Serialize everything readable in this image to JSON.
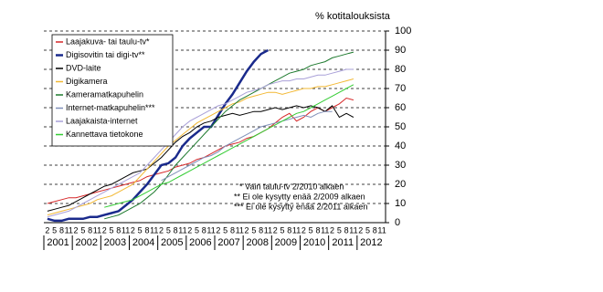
{
  "chart_data": {
    "type": "line",
    "y_axis_label": "% kotitalouksista",
    "categories": [
      "2",
      "5",
      "8",
      "11",
      "2",
      "5",
      "8",
      "11",
      "2",
      "5",
      "8",
      "11",
      "2",
      "5",
      "8",
      "11",
      "2",
      "5",
      "8",
      "11",
      "2",
      "5",
      "8",
      "11",
      "2",
      "5",
      "8",
      "11",
      "2",
      "5",
      "8",
      "11",
      "2",
      "5",
      "8",
      "11",
      "2",
      "5",
      "8",
      "11",
      "2",
      "5",
      "8",
      "11",
      "2",
      "5",
      "8",
      "11"
    ],
    "years": [
      "2001",
      "2002",
      "2003",
      "2004",
      "2005",
      "2006",
      "2007",
      "2008",
      "2009",
      "2010",
      "2011",
      "2012"
    ],
    "ylim": [
      0,
      100
    ],
    "yticks": [
      0,
      10,
      20,
      30,
      40,
      50,
      60,
      70,
      80,
      90,
      100
    ],
    "grid": true,
    "series": [
      {
        "name": "Laajakuva- tai taulu-tv*",
        "color": "#d62728",
        "values": [
          10,
          11,
          12,
          13,
          13,
          14,
          15,
          16,
          17,
          18,
          19,
          20,
          21,
          22,
          24,
          25,
          26,
          27,
          29,
          30,
          31,
          33,
          34,
          36,
          38,
          40,
          41,
          42,
          44,
          45,
          47,
          49,
          52,
          55,
          57,
          53,
          55,
          58,
          60,
          58,
          60,
          62,
          65,
          64,
          null,
          null,
          null,
          null
        ]
      },
      {
        "name": "Digisovitin tai digi-tv**",
        "color": "#1a2a8c",
        "values": [
          2,
          1,
          1,
          2,
          2,
          2,
          3,
          3,
          4,
          5,
          6,
          9,
          12,
          16,
          20,
          25,
          30,
          31,
          34,
          40,
          44,
          47,
          50,
          50,
          56,
          62,
          67,
          73,
          79,
          84,
          88,
          90,
          null,
          null,
          null,
          null,
          null,
          null,
          null,
          null,
          null,
          null,
          null,
          null,
          null,
          null,
          null,
          null
        ]
      },
      {
        "name": "DVD-laite",
        "color": "#000000",
        "values": [
          6,
          7,
          8,
          9,
          11,
          13,
          15,
          17,
          19,
          20,
          22,
          24,
          26,
          27,
          28,
          31,
          34,
          38,
          42,
          45,
          47,
          50,
          52,
          53,
          55,
          56,
          57,
          56,
          57,
          58,
          58,
          59,
          60,
          59,
          60,
          61,
          60,
          61,
          60,
          58,
          61,
          55,
          57,
          55,
          null,
          null,
          null,
          null
        ]
      },
      {
        "name": "Digikamera",
        "color": "#f2b833",
        "values": [
          4,
          5,
          6,
          7,
          8,
          9,
          10,
          12,
          13,
          14,
          16,
          18,
          20,
          24,
          28,
          32,
          36,
          40,
          43,
          46,
          49,
          52,
          54,
          56,
          58,
          60,
          62,
          63,
          65,
          66,
          67,
          68,
          68,
          67,
          68,
          69,
          70,
          70,
          71,
          71,
          72,
          73,
          74,
          75,
          null,
          null,
          null,
          null
        ]
      },
      {
        "name": "Kameramatkapuhelin",
        "color": "#1e7a2e",
        "values": [
          null,
          null,
          null,
          null,
          null,
          null,
          null,
          null,
          2,
          3,
          4,
          6,
          8,
          10,
          13,
          16,
          20,
          25,
          30,
          34,
          38,
          42,
          46,
          50,
          54,
          58,
          61,
          64,
          66,
          68,
          70,
          72,
          74,
          76,
          78,
          79,
          80,
          82,
          83,
          84,
          86,
          87,
          88,
          89,
          null,
          null,
          null,
          null
        ]
      },
      {
        "name": "Internet-matkapuhelin***",
        "color": "#7f8fb8",
        "values": [
          null,
          null,
          null,
          null,
          null,
          null,
          null,
          null,
          null,
          null,
          null,
          null,
          null,
          null,
          null,
          null,
          22,
          24,
          26,
          28,
          30,
          32,
          34,
          35,
          37,
          40,
          42,
          44,
          46,
          48,
          50,
          51,
          52,
          53,
          54,
          55,
          56,
          55,
          57,
          58,
          58,
          null,
          null,
          null,
          null,
          null,
          null,
          null
        ]
      },
      {
        "name": "Laajakaista-internet",
        "color": "#a9a0d8",
        "values": [
          3,
          4,
          5,
          6,
          8,
          10,
          12,
          14,
          16,
          18,
          20,
          22,
          24,
          26,
          30,
          34,
          38,
          42,
          46,
          50,
          53,
          55,
          57,
          59,
          61,
          62,
          64,
          66,
          68,
          69,
          70,
          72,
          73,
          74,
          74,
          75,
          75,
          76,
          77,
          77,
          78,
          79,
          80,
          80,
          null,
          null,
          null,
          null
        ]
      },
      {
        "name": "Kannettava tietokone",
        "color": "#33cc33",
        "values": [
          null,
          null,
          null,
          null,
          null,
          null,
          null,
          null,
          8,
          9,
          10,
          11,
          12,
          14,
          16,
          18,
          20,
          21,
          23,
          25,
          27,
          29,
          31,
          33,
          35,
          37,
          39,
          41,
          43,
          45,
          47,
          49,
          51,
          53,
          55,
          57,
          58,
          60,
          62,
          64,
          66,
          68,
          70,
          72,
          null,
          null,
          null,
          null
        ]
      }
    ],
    "notes": [
      "* Vain taulu-tv 2/2010 alkaen",
      "** Ei ole kysytty enää 2/2009 alkaen",
      "*** Ei ole kysytty enää 2/2011 alkaen"
    ]
  }
}
